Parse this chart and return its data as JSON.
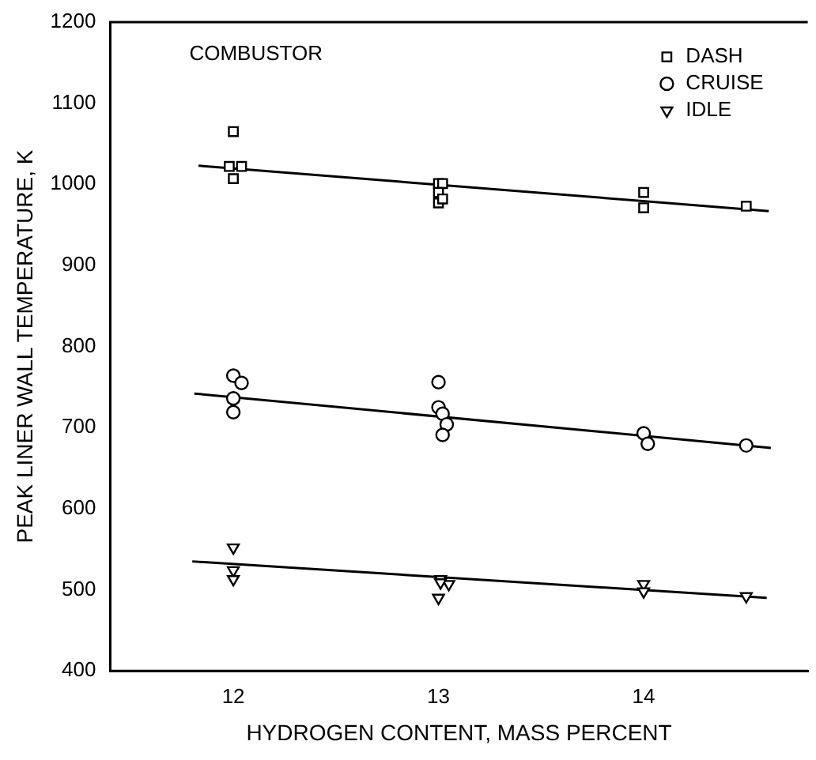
{
  "chart_data": {
    "type": "scatter",
    "xlabel": "HYDROGEN CONTENT, MASS PERCENT",
    "ylabel": "PEAK LINER WALL TEMPERATURE, K",
    "annotations": [
      "COMBUSTOR"
    ],
    "xlim": [
      11.4,
      14.8
    ],
    "xticks": [
      12,
      13,
      14
    ],
    "ylim": [
      400,
      1200
    ],
    "yticks": [
      400,
      500,
      600,
      700,
      800,
      900,
      1000,
      1100,
      1200
    ],
    "grid": false,
    "legend": "top right",
    "series": [
      {
        "name": "DASH",
        "marker": "square",
        "color": "#000000",
        "x": [
          12,
          11.98,
          12.04,
          12,
          13,
          13.02,
          13,
          13,
          13.02,
          14,
          14,
          14.5
        ],
        "values": [
          1065,
          1022,
          1022,
          1007,
          1001,
          1001,
          990,
          977,
          982,
          990,
          971,
          973
        ]
      },
      {
        "name": "CRUISE",
        "marker": "circle",
        "color": "#000000",
        "x": [
          12,
          12.04,
          12,
          12,
          13,
          13,
          13.02,
          13.04,
          13.02,
          14,
          14.02,
          14.5
        ],
        "values": [
          764,
          755,
          736,
          719,
          756,
          725,
          717,
          704,
          691,
          693,
          680,
          678
        ]
      },
      {
        "name": "IDLE",
        "marker": "triangle",
        "color": "#000000",
        "x": [
          12,
          12,
          12,
          13.01,
          13.05,
          13,
          13.01,
          14,
          14,
          14.5
        ],
        "values": [
          552,
          524,
          513,
          513,
          507,
          490,
          509,
          507,
          498,
          492
        ]
      },
      {
        "type": "line",
        "marker": "none",
        "color": "#000000",
        "x": [
          11.83,
          14.61
        ],
        "values": [
          1023,
          967
        ]
      },
      {
        "type": "line",
        "marker": "none",
        "color": "#000000",
        "x": [
          11.81,
          14.62
        ],
        "values": [
          742,
          675
        ]
      },
      {
        "type": "line",
        "marker": "none",
        "color": "#000000",
        "x": [
          11.8,
          14.6
        ],
        "values": [
          535,
          490
        ]
      }
    ]
  }
}
